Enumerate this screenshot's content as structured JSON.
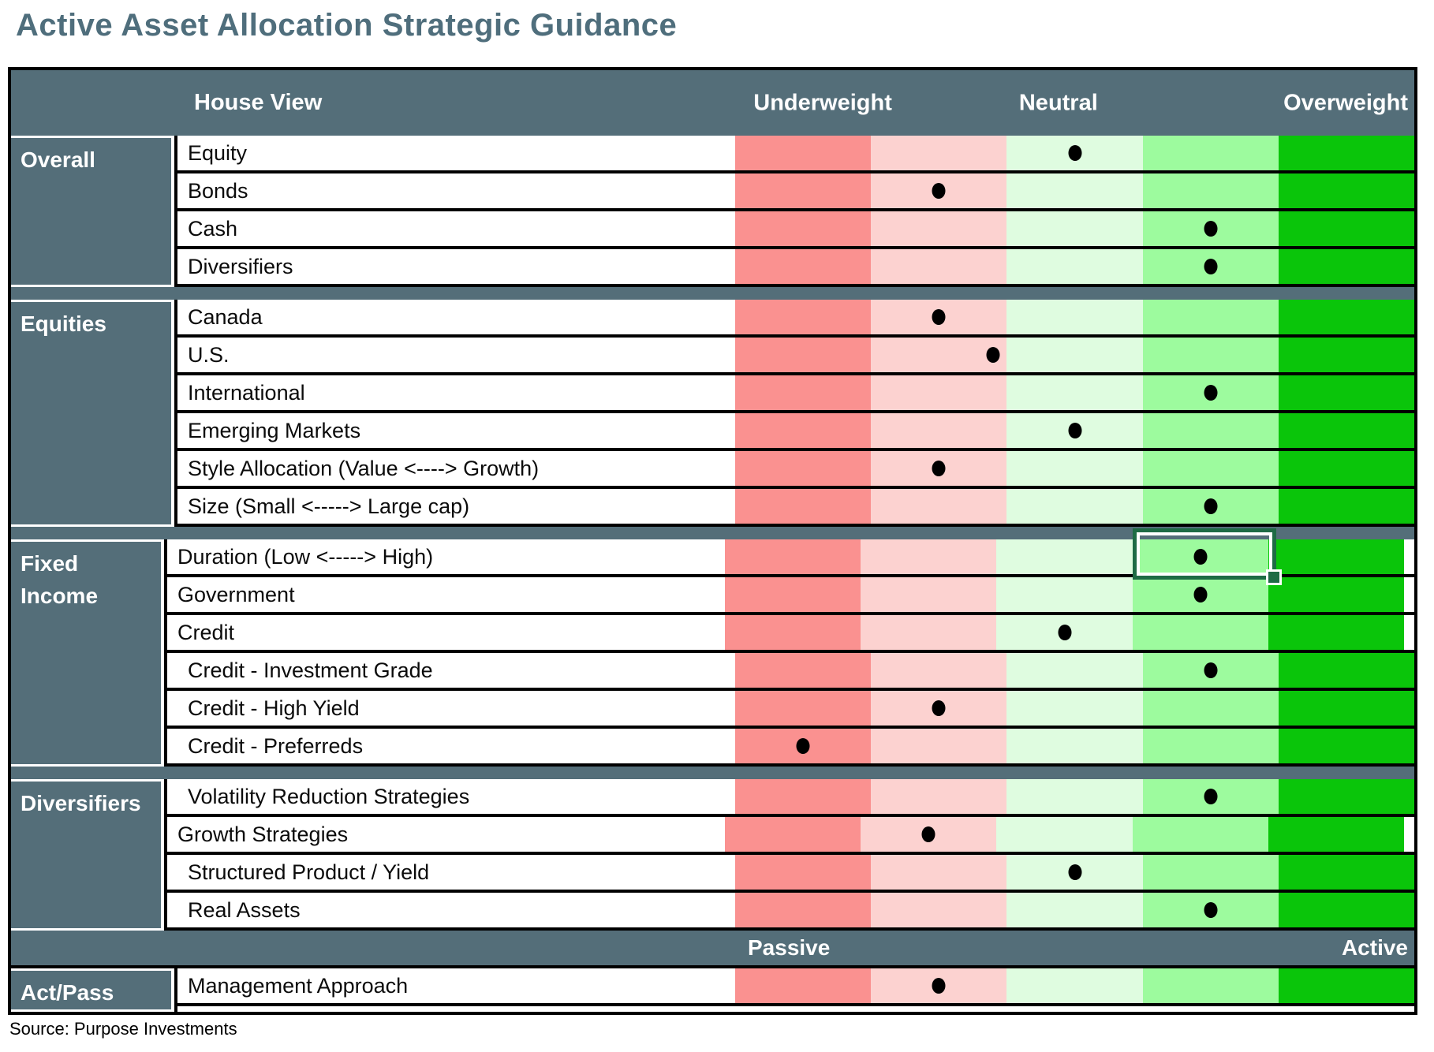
{
  "title": "Active Asset Allocation Strategic Guidance",
  "source": "Source: Purpose Investments",
  "header": {
    "house_view": "House View",
    "underweight": "Underweight",
    "neutral": "Neutral",
    "overweight": "Overweight"
  },
  "scale_bar": {
    "passive": "Passive",
    "active": "Active"
  },
  "colors": {
    "slate": "#546E79",
    "title_text": "#4F6E7C",
    "band1": "#FA9190",
    "band2": "#FCD2D0",
    "band3": "#DFFCE0",
    "band4": "#9DFB9E",
    "band5": "#0AC50A",
    "dot": "#000000",
    "selection_border": "#1E6B45"
  },
  "groups": [
    {
      "label": "Overall",
      "rows": [
        {
          "label": "Equity",
          "band": 3,
          "offset": 0.5
        },
        {
          "label": "Bonds",
          "band": 2,
          "offset": 0.5
        },
        {
          "label": "Cash",
          "band": 4,
          "offset": 0.5
        },
        {
          "label": "Diversifiers",
          "band": 4,
          "offset": 0.5
        }
      ]
    },
    {
      "label": "Equities",
      "rows": [
        {
          "label": "Canada",
          "band": 2,
          "offset": 0.5
        },
        {
          "label": "U.S.",
          "band": 2,
          "offset": 0.9
        },
        {
          "label": "International",
          "band": 4,
          "offset": 0.5
        },
        {
          "label": "Emerging Markets",
          "band": 3,
          "offset": 0.5
        },
        {
          "label": "Style Allocation (Value <----> Growth)",
          "band": 2,
          "offset": 0.5
        },
        {
          "label": "Size (Small <----->  Large cap)",
          "band": 4,
          "offset": 0.5
        }
      ]
    },
    {
      "label": "Fixed\nIncome",
      "rows": [
        {
          "label": "Duration (Low <-----> High)",
          "band": 4,
          "offset": 0.5,
          "selected": true
        },
        {
          "label": "Government",
          "band": 4,
          "offset": 0.5
        },
        {
          "label": "Credit",
          "band": 3,
          "offset": 0.5
        },
        {
          "label": "Credit - Investment Grade",
          "band": 4,
          "offset": 0.5,
          "indent": true
        },
        {
          "label": "Credit - High Yield",
          "band": 2,
          "offset": 0.5,
          "indent": true
        },
        {
          "label": "Credit - Preferreds",
          "band": 1,
          "offset": 0.5,
          "indent": true
        }
      ]
    },
    {
      "label": "Diversifiers",
      "rows": [
        {
          "label": "Volatility Reduction Strategies",
          "band": 4,
          "offset": 0.5,
          "indent": true
        },
        {
          "label": "Growth Strategies",
          "band": 2,
          "offset": 0.5
        },
        {
          "label": "Structured Product / Yield",
          "band": 3,
          "offset": 0.5,
          "indent": true
        },
        {
          "label": "Real Assets",
          "band": 4,
          "offset": 0.5,
          "indent": true
        }
      ]
    },
    {
      "label": "Act/Pass",
      "rows": [
        {
          "label": "Management Approach",
          "band": 2,
          "offset": 0.5
        }
      ]
    }
  ],
  "chart_data": {
    "type": "table",
    "title": "Active Asset Allocation Strategic Guidance",
    "scale_labels": [
      "Underweight",
      "Neutral",
      "Overweight"
    ],
    "scale_bands": 5,
    "scale_note": "1 = strong underweight, 3 = neutral, 5 = strong overweight",
    "rows": [
      {
        "group": "Overall",
        "label": "Equity",
        "position": 3
      },
      {
        "group": "Overall",
        "label": "Bonds",
        "position": 2
      },
      {
        "group": "Overall",
        "label": "Cash",
        "position": 4
      },
      {
        "group": "Overall",
        "label": "Diversifiers",
        "position": 4
      },
      {
        "group": "Equities",
        "label": "Canada",
        "position": 2
      },
      {
        "group": "Equities",
        "label": "U.S.",
        "position": 2.9
      },
      {
        "group": "Equities",
        "label": "International",
        "position": 4
      },
      {
        "group": "Equities",
        "label": "Emerging Markets",
        "position": 3
      },
      {
        "group": "Equities",
        "label": "Style Allocation (Value <----> Growth)",
        "position": 2
      },
      {
        "group": "Equities",
        "label": "Size (Small <----->  Large cap)",
        "position": 4
      },
      {
        "group": "Fixed Income",
        "label": "Duration (Low <-----> High)",
        "position": 4,
        "selected_cell": true
      },
      {
        "group": "Fixed Income",
        "label": "Government",
        "position": 4
      },
      {
        "group": "Fixed Income",
        "label": "Credit",
        "position": 3
      },
      {
        "group": "Fixed Income",
        "label": "Credit - Investment Grade",
        "position": 4
      },
      {
        "group": "Fixed Income",
        "label": "Credit - High Yield",
        "position": 2
      },
      {
        "group": "Fixed Income",
        "label": "Credit - Preferreds",
        "position": 1
      },
      {
        "group": "Diversifiers",
        "label": "Volatility Reduction Strategies",
        "position": 4
      },
      {
        "group": "Diversifiers",
        "label": "Growth Strategies",
        "position": 2
      },
      {
        "group": "Diversifiers",
        "label": "Structured Product / Yield",
        "position": 3
      },
      {
        "group": "Diversifiers",
        "label": "Real Assets",
        "position": 4
      },
      {
        "group": "Act/Pass",
        "label": "Management Approach",
        "position": 2,
        "scale": [
          "Passive",
          "Active"
        ]
      }
    ]
  }
}
